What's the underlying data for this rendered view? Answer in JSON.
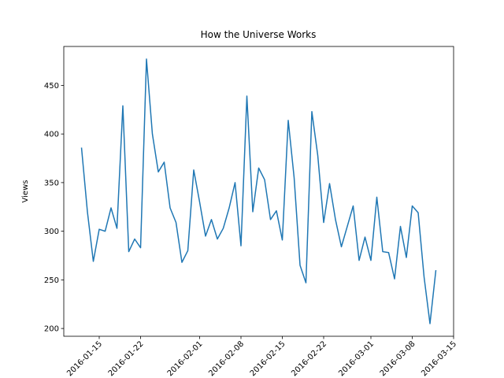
{
  "chart_data": {
    "type": "line",
    "title": "How the Universe Works",
    "ylabel": "Views",
    "x": [
      "2016-01-12",
      "2016-01-13",
      "2016-01-14",
      "2016-01-15",
      "2016-01-16",
      "2016-01-17",
      "2016-01-18",
      "2016-01-19",
      "2016-01-20",
      "2016-01-21",
      "2016-01-22",
      "2016-01-23",
      "2016-01-24",
      "2016-01-25",
      "2016-01-26",
      "2016-01-27",
      "2016-01-28",
      "2016-01-29",
      "2016-01-30",
      "2016-01-31",
      "2016-02-01",
      "2016-02-02",
      "2016-02-03",
      "2016-02-04",
      "2016-02-05",
      "2016-02-06",
      "2016-02-07",
      "2016-02-08",
      "2016-02-09",
      "2016-02-10",
      "2016-02-11",
      "2016-02-12",
      "2016-02-13",
      "2016-02-14",
      "2016-02-15",
      "2016-02-16",
      "2016-02-17",
      "2016-02-18",
      "2016-02-19",
      "2016-02-20",
      "2016-02-21",
      "2016-02-22",
      "2016-02-23",
      "2016-02-24",
      "2016-02-25",
      "2016-02-26",
      "2016-02-27",
      "2016-02-28",
      "2016-02-29",
      "2016-03-01",
      "2016-03-02",
      "2016-03-03",
      "2016-03-04",
      "2016-03-05",
      "2016-03-06",
      "2016-03-07",
      "2016-03-08",
      "2016-03-09",
      "2016-03-10",
      "2016-03-11",
      "2016-03-12"
    ],
    "series": [
      {
        "name": "Views",
        "color": "#1f77b4",
        "values": [
          386,
          320,
          269,
          302,
          300,
          324,
          303,
          429,
          279,
          292,
          283,
          477,
          400,
          361,
          371,
          324,
          309,
          268,
          280,
          363,
          330,
          295,
          312,
          292,
          303,
          324,
          350,
          285,
          439,
          320,
          365,
          353,
          312,
          321,
          291,
          414,
          355,
          265,
          247,
          423,
          378,
          309,
          349,
          312,
          284,
          305,
          326,
          270,
          294,
          270,
          335,
          279,
          278,
          251,
          305,
          273,
          326,
          319,
          253,
          205,
          260
        ]
      }
    ],
    "xlim": [
      "2016-01-09",
      "2016-03-15"
    ],
    "xticks": [
      "2016-01-15",
      "2016-01-22",
      "2016-02-01",
      "2016-02-08",
      "2016-02-15",
      "2016-02-22",
      "2016-03-01",
      "2016-03-08",
      "2016-03-15"
    ],
    "ylim": [
      192,
      490
    ],
    "yticks": [
      200,
      250,
      300,
      350,
      400,
      450
    ]
  }
}
